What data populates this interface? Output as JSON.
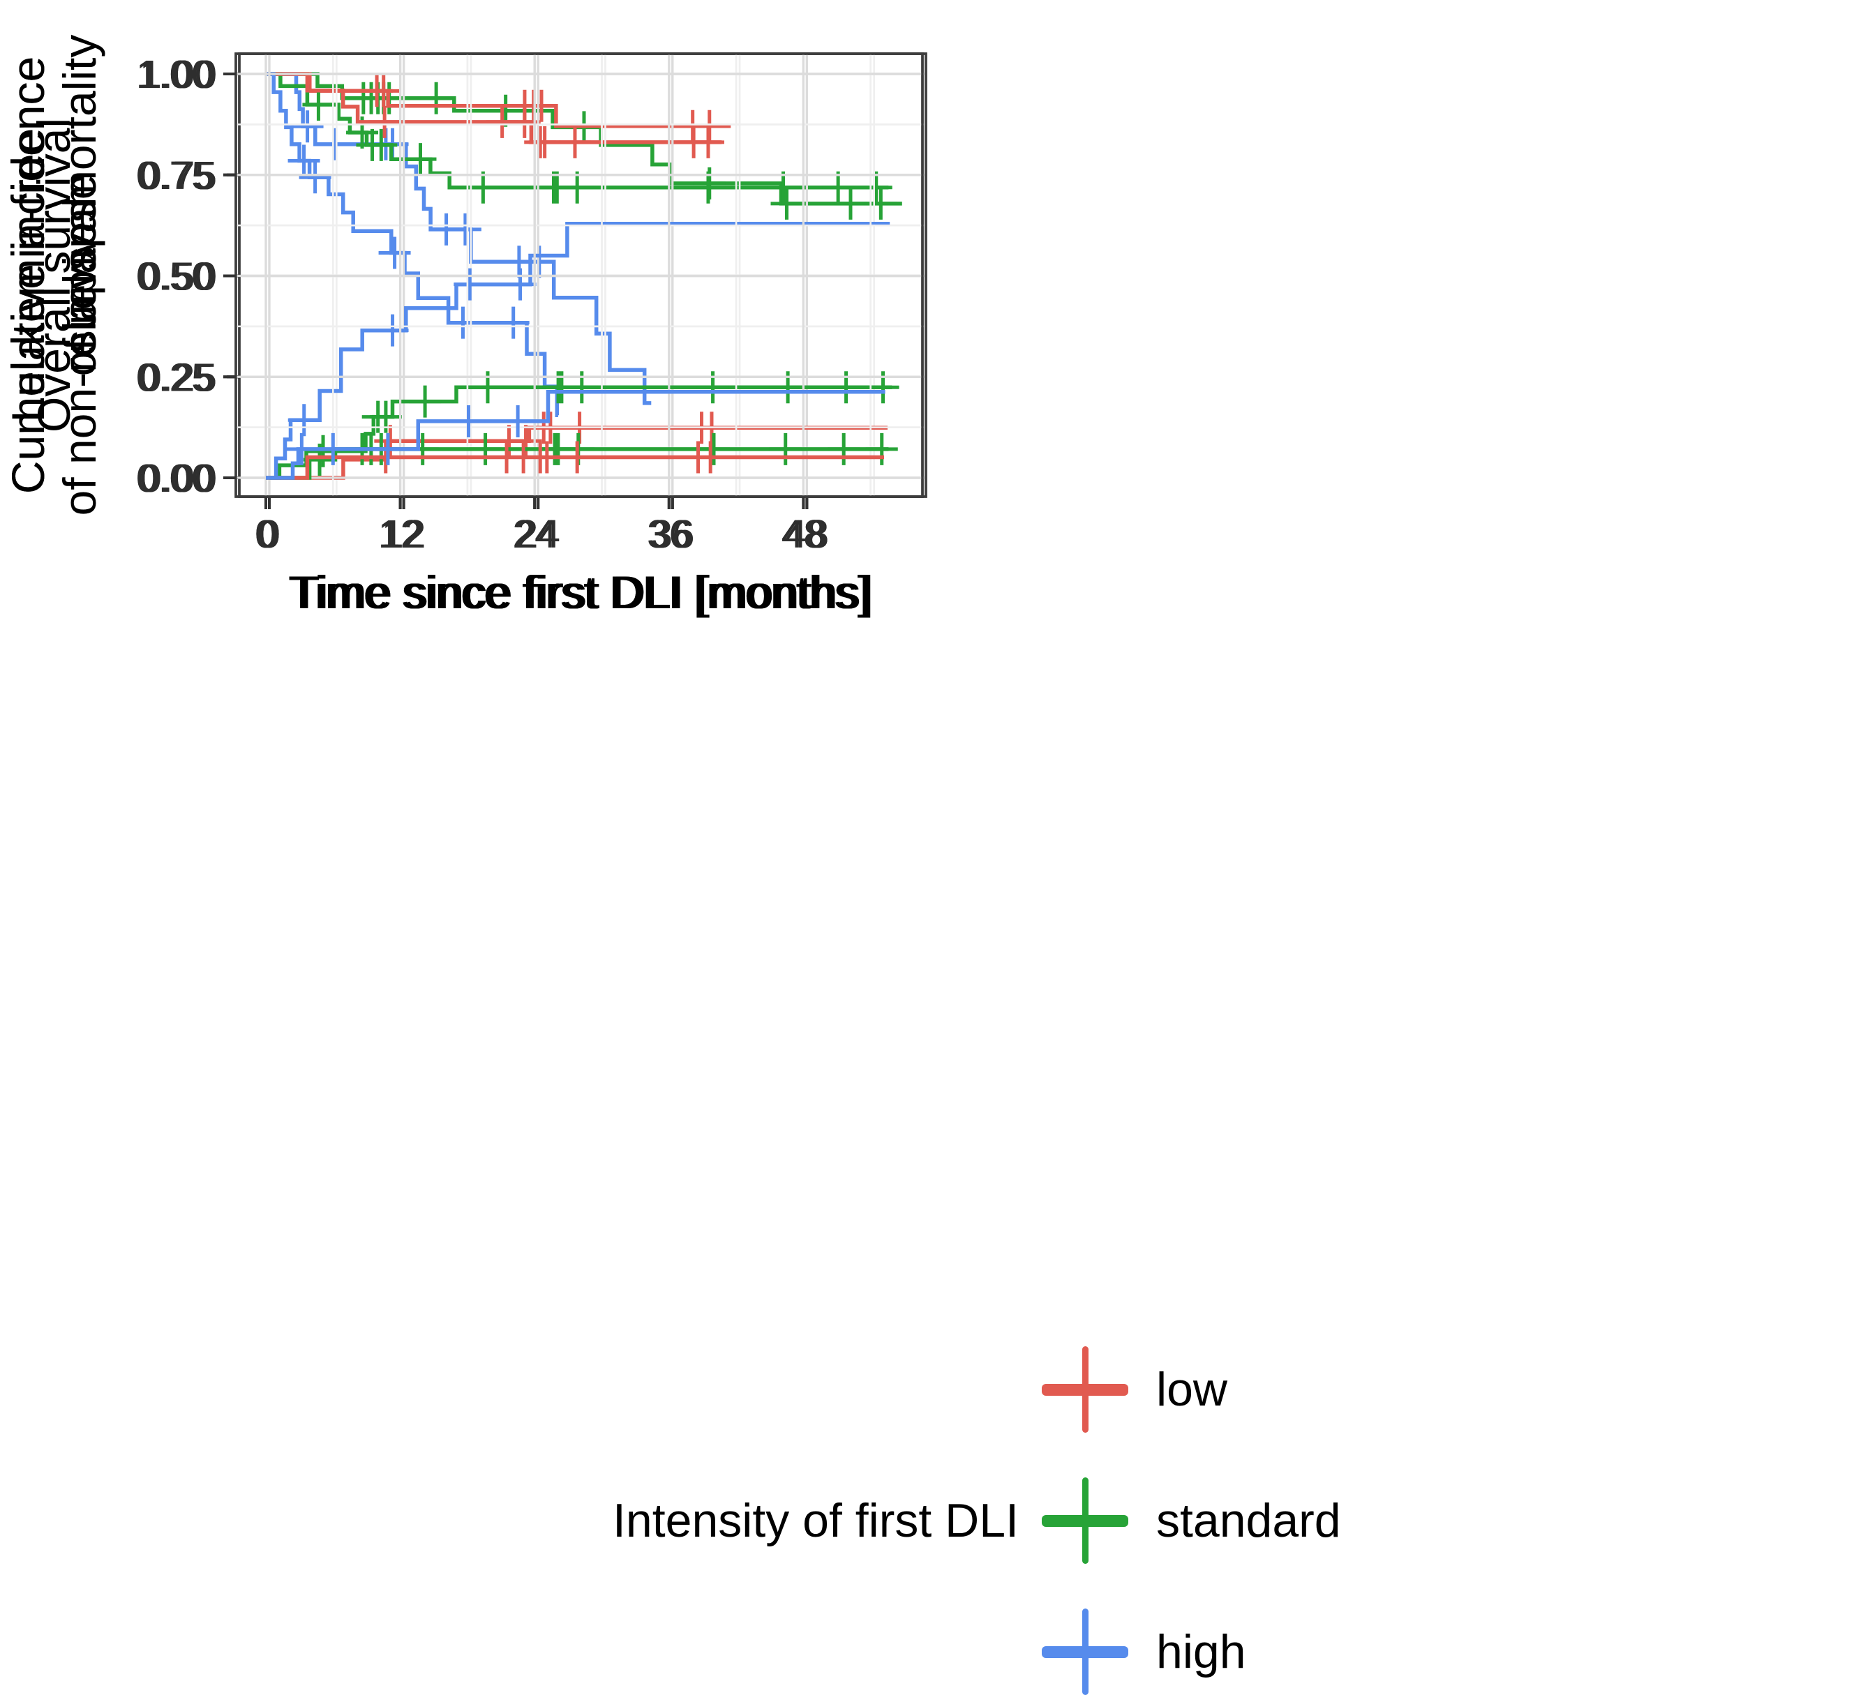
{
  "figure": {
    "legend": {
      "title": "Intensity of first DLI",
      "items": [
        {
          "label": "low",
          "color": "#E15A50"
        },
        {
          "label": "standard",
          "color": "#27A337"
        },
        {
          "label": "high",
          "color": "#568BEC"
        }
      ]
    }
  },
  "chart_data": [
    {
      "type": "line",
      "subtype": "kaplan-meier-step",
      "ylabel_lines": [
        "Overall survival"
      ],
      "xlabel": "Time since first DLI [months]",
      "xlim": [
        -2.7,
        58.6
      ],
      "ylim": [
        -0.047,
        1.05
      ],
      "grid": true,
      "xtick_values": [
        0,
        12,
        24,
        36,
        48
      ],
      "xtick_labels": [
        "0",
        "12",
        "24",
        "36",
        "48"
      ],
      "ytick_values": [
        1.0,
        0.75,
        0.5,
        0.25,
        0.0
      ],
      "ytick_labels": [
        "1.00",
        "0.75",
        "0.50",
        "0.25",
        "0.00"
      ],
      "series": [
        {
          "name": "low",
          "color": "#E15A50",
          "end": 41.2,
          "steps": [
            [
              0,
              1
            ],
            [
              3.6,
              0.958
            ],
            [
              10.6,
              0.921
            ],
            [
              25.6,
              0.871
            ]
          ],
          "censors": [
            [
              9.6,
              0.958
            ],
            [
              10.2,
              0.958
            ],
            [
              22.8,
              0.921
            ],
            [
              23.6,
              0.921
            ],
            [
              24.3,
              0.921
            ],
            [
              37.8,
              0.871
            ],
            [
              39.3,
              0.871
            ]
          ]
        },
        {
          "name": "standard",
          "color": "#27A337",
          "end": 56.5,
          "steps": [
            [
              0,
              1
            ],
            [
              4.3,
              0.97
            ],
            [
              6.5,
              0.94
            ],
            [
              16.5,
              0.909
            ],
            [
              25.3,
              0.868
            ],
            [
              29.6,
              0.824
            ],
            [
              34.2,
              0.776
            ],
            [
              35.8,
              0.729
            ],
            [
              45.7,
              0.679
            ]
          ],
          "censors": [
            [
              8.4,
              0.94
            ],
            [
              9.1,
              0.94
            ],
            [
              9.7,
              0.94
            ],
            [
              10.2,
              0.94
            ],
            [
              10.7,
              0.94
            ],
            [
              14.9,
              0.94
            ],
            [
              21.1,
              0.909
            ],
            [
              28.1,
              0.868
            ],
            [
              39.3,
              0.729
            ],
            [
              46.2,
              0.679
            ],
            [
              51.9,
              0.679
            ],
            [
              54.6,
              0.679
            ]
          ]
        },
        {
          "name": "high",
          "color": "#568BEC",
          "end": 34.1,
          "steps": [
            [
              0,
              1
            ],
            [
              2.4,
              0.955
            ],
            [
              2.7,
              0.913
            ],
            [
              3.0,
              0.87
            ],
            [
              4.1,
              0.826
            ],
            [
              12.2,
              0.771
            ],
            [
              13.1,
              0.716
            ],
            [
              13.8,
              0.666
            ],
            [
              14.4,
              0.615
            ],
            [
              18.0,
              0.535
            ],
            [
              25.4,
              0.446
            ],
            [
              29.2,
              0.357
            ],
            [
              30.4,
              0.267
            ],
            [
              33.5,
              0.185
            ]
          ],
          "censors": [
            [
              3.4,
              0.87
            ],
            [
              5.8,
              0.826
            ],
            [
              10.4,
              0.826
            ],
            [
              11.0,
              0.826
            ],
            [
              15.8,
              0.615
            ],
            [
              17.5,
              0.615
            ],
            [
              22.3,
              0.535
            ],
            [
              24.1,
              0.535
            ]
          ]
        }
      ]
    },
    {
      "type": "line",
      "subtype": "kaplan-meier-step",
      "ylabel_lines": [
        "Leukemia-free",
        "survival"
      ],
      "xlabel": "Time since first DLI [months]",
      "xlim": [
        -2.7,
        58.6
      ],
      "ylim": [
        -0.047,
        1.05
      ],
      "grid": true,
      "xtick_values": [
        0,
        12,
        24,
        36,
        48
      ],
      "xtick_labels": [
        "0",
        "12",
        "24",
        "36",
        "48"
      ],
      "ytick_values": [
        1.0,
        0.75,
        0.5,
        0.25,
        0.0
      ],
      "ytick_labels": [
        "1.00",
        "0.75",
        "0.50",
        "0.25",
        "0.00"
      ],
      "series": [
        {
          "name": "low",
          "color": "#E15A50",
          "end": 40.7,
          "steps": [
            [
              0,
              1
            ],
            [
              3.7,
              0.959
            ],
            [
              6.9,
              0.919
            ],
            [
              8.2,
              0.881
            ],
            [
              23.7,
              0.831
            ]
          ],
          "censors": [
            [
              10.6,
              0.881
            ],
            [
              21.1,
              0.881
            ],
            [
              23.1,
              0.881
            ],
            [
              24.5,
              0.831
            ],
            [
              24.9,
              0.831
            ],
            [
              27.6,
              0.831
            ],
            [
              38.2,
              0.831
            ],
            [
              39.5,
              0.831
            ]
          ]
        },
        {
          "name": "standard",
          "color": "#27A337",
          "end": 55.6,
          "steps": [
            [
              0,
              1
            ],
            [
              1.3,
              0.97
            ],
            [
              3.7,
              0.924
            ],
            [
              6.5,
              0.889
            ],
            [
              7.5,
              0.855
            ],
            [
              9.0,
              0.824
            ],
            [
              11.2,
              0.789
            ],
            [
              14.7,
              0.754
            ],
            [
              16.4,
              0.719
            ]
          ],
          "censors": [
            [
              4.7,
              0.924
            ],
            [
              8.6,
              0.855
            ],
            [
              9.5,
              0.824
            ],
            [
              10.3,
              0.824
            ],
            [
              13.8,
              0.789
            ],
            [
              19.4,
              0.719
            ],
            [
              25.7,
              0.719
            ],
            [
              26.0,
              0.719
            ],
            [
              27.8,
              0.719
            ],
            [
              39.5,
              0.719
            ],
            [
              46.2,
              0.719
            ],
            [
              51.1,
              0.719
            ],
            [
              54.5,
              0.719
            ]
          ]
        },
        {
          "name": "high",
          "color": "#568BEC",
          "end": 26.1,
          "steps": [
            [
              0,
              1
            ],
            [
              0.7,
              0.955
            ],
            [
              1.3,
              0.909
            ],
            [
              1.8,
              0.868
            ],
            [
              2.3,
              0.826
            ],
            [
              3.0,
              0.785
            ],
            [
              3.9,
              0.744
            ],
            [
              5.6,
              0.702
            ],
            [
              6.9,
              0.657
            ],
            [
              7.8,
              0.611
            ],
            [
              11.2,
              0.557
            ],
            [
              12.4,
              0.506
            ],
            [
              13.6,
              0.445
            ],
            [
              16.3,
              0.384
            ],
            [
              23.3,
              0.307
            ],
            [
              24.9,
              0.226
            ],
            [
              26.0,
              0.155
            ]
          ],
          "censors": [
            [
              3.4,
              0.785
            ],
            [
              4.4,
              0.744
            ],
            [
              11.5,
              0.557
            ],
            [
              17.6,
              0.384
            ],
            [
              22.1,
              0.384
            ]
          ]
        }
      ]
    },
    {
      "type": "line",
      "subtype": "cumulative-incidence-step",
      "ylabel_lines": [
        "Cumulative incidence",
        "of relapse"
      ],
      "xlabel": "Time since first DLI [months]",
      "xlim": [
        -2.7,
        58.6
      ],
      "ylim": [
        -0.047,
        1.05
      ],
      "grid": true,
      "xtick_values": [
        0,
        12,
        24,
        36,
        48
      ],
      "xtick_labels": [
        "0",
        "12",
        "24",
        "36",
        "48"
      ],
      "ytick_values": [
        1.0,
        0.75,
        0.5,
        0.25,
        0.0
      ],
      "ytick_labels": [
        "1.00",
        "0.75",
        "0.50",
        "0.25",
        "0.00"
      ],
      "series": [
        {
          "name": "low",
          "color": "#E15A50",
          "end": 55.2,
          "steps": [
            [
              0,
              0
            ],
            [
              6.6,
              0.045
            ],
            [
              10.5,
              0.091
            ],
            [
              23.2,
              0.124
            ]
          ],
          "censors": [
            [
              10.8,
              0.091
            ],
            [
              21.4,
              0.091
            ],
            [
              22.9,
              0.091
            ],
            [
              24.5,
              0.124
            ],
            [
              25.1,
              0.124
            ],
            [
              27.7,
              0.124
            ],
            [
              38.6,
              0.124
            ],
            [
              39.5,
              0.124
            ]
          ]
        },
        {
          "name": "standard",
          "color": "#27A337",
          "end": 55.6,
          "steps": [
            [
              0,
              0
            ],
            [
              0.9,
              0.031
            ],
            [
              3.3,
              0.066
            ],
            [
              8.6,
              0.109
            ],
            [
              9.3,
              0.151
            ],
            [
              11.0,
              0.189
            ],
            [
              16.7,
              0.224
            ]
          ],
          "censors": [
            [
              4.8,
              0.066
            ],
            [
              9.7,
              0.151
            ],
            [
              10.4,
              0.151
            ],
            [
              13.9,
              0.189
            ],
            [
              19.5,
              0.224
            ],
            [
              25.8,
              0.224
            ],
            [
              26.1,
              0.224
            ],
            [
              27.9,
              0.224
            ],
            [
              39.6,
              0.224
            ],
            [
              46.3,
              0.224
            ],
            [
              51.5,
              0.224
            ],
            [
              54.8,
              0.224
            ]
          ]
        },
        {
          "name": "high",
          "color": "#568BEC",
          "end": 55.4,
          "steps": [
            [
              0,
              0
            ],
            [
              0.6,
              0.048
            ],
            [
              1.4,
              0.095
            ],
            [
              1.9,
              0.143
            ],
            [
              4.5,
              0.215
            ],
            [
              6.4,
              0.318
            ],
            [
              8.3,
              0.365
            ],
            [
              12.2,
              0.42
            ],
            [
              16.7,
              0.479
            ],
            [
              23.3,
              0.55
            ],
            [
              26.6,
              0.629
            ]
          ],
          "censors": [
            [
              3.1,
              0.143
            ],
            [
              11.0,
              0.365
            ],
            [
              17.9,
              0.479
            ],
            [
              22.4,
              0.479
            ]
          ]
        }
      ]
    },
    {
      "type": "line",
      "subtype": "cumulative-incidence-step",
      "ylabel_lines": [
        "Cumulative incidence",
        "of non-relapse mortality"
      ],
      "xlabel": "Time since first DLI [months]",
      "xlim": [
        -2.7,
        58.6
      ],
      "ylim": [
        -0.047,
        1.05
      ],
      "grid": true,
      "xtick_values": [
        0,
        12,
        24,
        36,
        48
      ],
      "xtick_labels": [
        "0",
        "12",
        "24",
        "36",
        "48"
      ],
      "ytick_values": [
        1.0,
        0.75,
        0.5,
        0.25,
        0.0
      ],
      "ytick_labels": [
        "1.00",
        "0.75",
        "0.50",
        "0.25",
        "0.00"
      ],
      "series": [
        {
          "name": "low",
          "color": "#E15A50",
          "end": 55.2,
          "steps": [
            [
              0,
              0
            ],
            [
              3.7,
              0.051
            ]
          ],
          "censors": [
            [
              10.7,
              0.051
            ],
            [
              21.5,
              0.051
            ],
            [
              23.0,
              0.051
            ],
            [
              24.5,
              0.051
            ],
            [
              25.1,
              0.051
            ],
            [
              27.8,
              0.051
            ],
            [
              38.6,
              0.051
            ],
            [
              39.7,
              0.051
            ]
          ]
        },
        {
          "name": "standard",
          "color": "#27A337",
          "end": 55.6,
          "steps": [
            [
              0,
              0
            ],
            [
              3.9,
              0.045
            ],
            [
              6.2,
              0.071
            ]
          ],
          "censors": [
            [
              4.8,
              0.045
            ],
            [
              8.6,
              0.071
            ],
            [
              9.4,
              0.071
            ],
            [
              10.3,
              0.071
            ],
            [
              14.0,
              0.071
            ],
            [
              19.6,
              0.071
            ],
            [
              25.8,
              0.071
            ],
            [
              26.1,
              0.071
            ],
            [
              27.9,
              0.071
            ],
            [
              40.0,
              0.071
            ],
            [
              46.4,
              0.071
            ],
            [
              51.6,
              0.071
            ],
            [
              55.0,
              0.071
            ]
          ]
        },
        {
          "name": "high",
          "color": "#568BEC",
          "end": 55.3,
          "steps": [
            [
              0,
              0
            ],
            [
              2.4,
              0.036
            ],
            [
              2.9,
              0.071
            ],
            [
              13.6,
              0.14
            ],
            [
              25.2,
              0.213
            ]
          ],
          "censors": [
            [
              3.2,
              0.071
            ],
            [
              6.0,
              0.071
            ],
            [
              10.9,
              0.071
            ],
            [
              18.1,
              0.14
            ],
            [
              22.5,
              0.14
            ]
          ]
        }
      ]
    }
  ]
}
